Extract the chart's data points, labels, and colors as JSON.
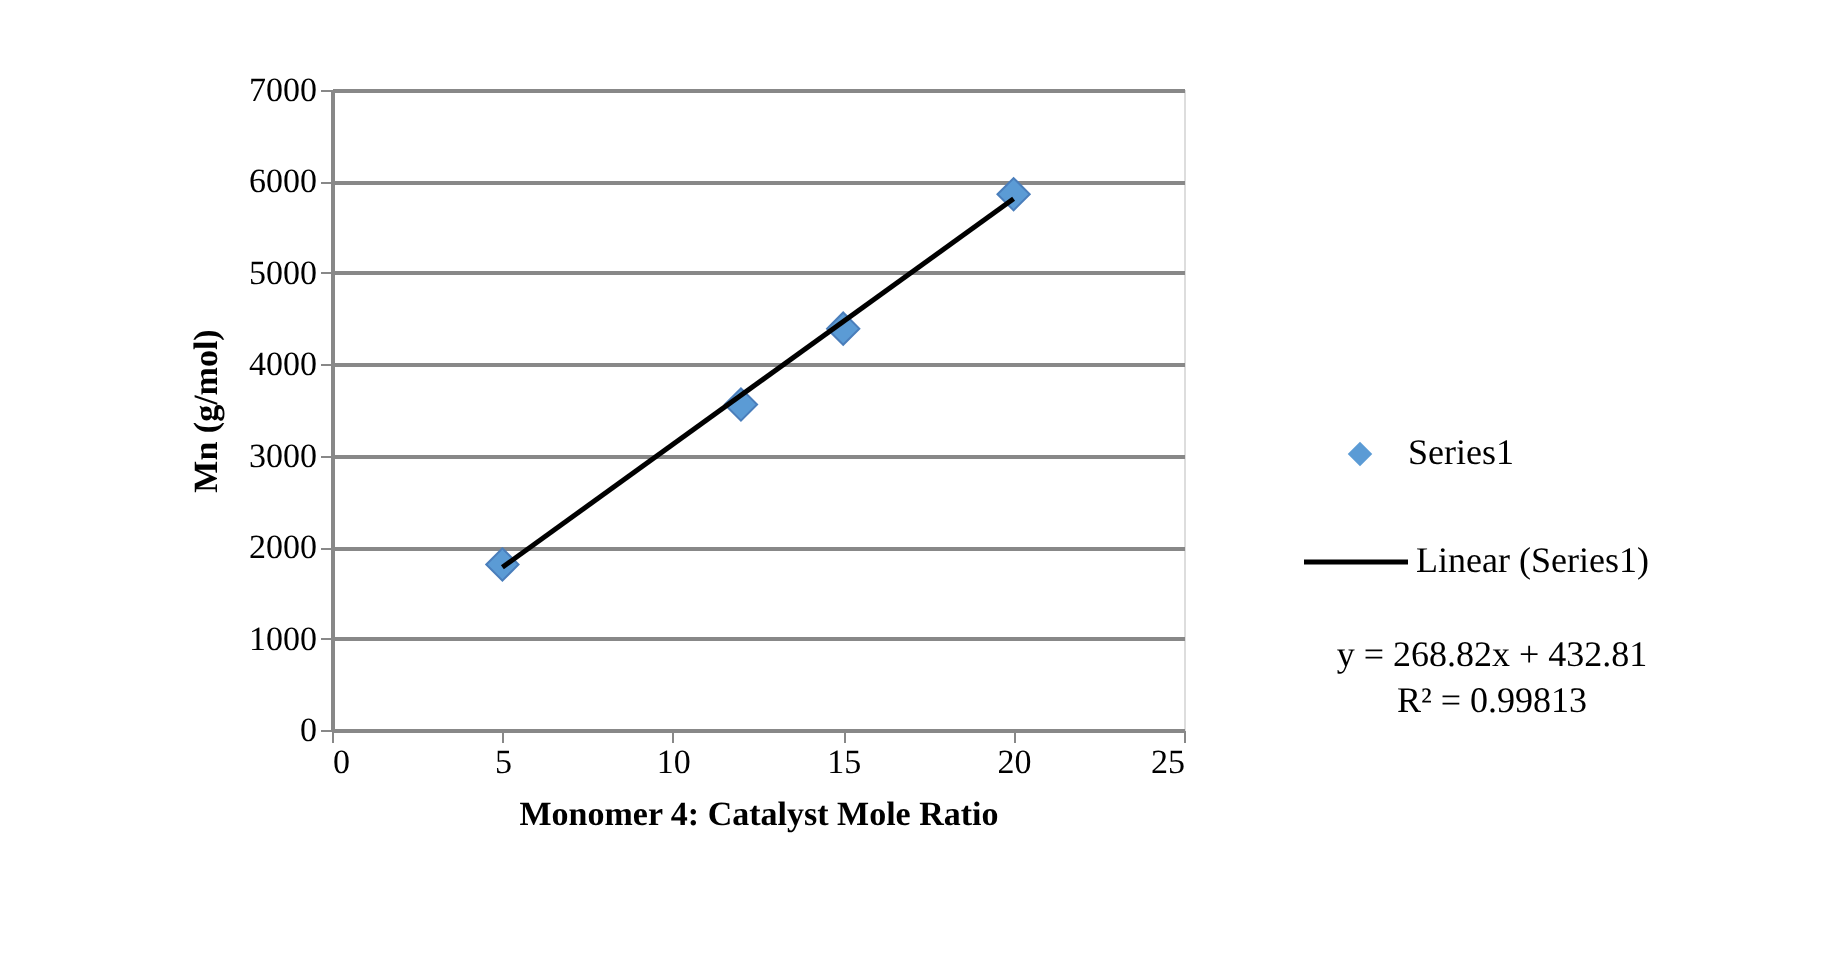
{
  "chart_data": {
    "type": "scatter",
    "xlabel": "Monomer 4: Catalyst Mole Ratio",
    "ylabel": "Mn (g/mol)",
    "series": [
      {
        "name": "Series1",
        "color": "#5b9bd5",
        "marker": "diamond",
        "x": [
          5,
          12,
          15,
          20
        ],
        "values": [
          1810,
          3560,
          4390,
          5860
        ]
      },
      {
        "name": "Linear (Series1)",
        "type": "line",
        "color": "#000000",
        "x": [
          5,
          20
        ],
        "values": [
          1780,
          5810
        ]
      }
    ],
    "xlim": [
      0,
      25
    ],
    "xticks": [
      0,
      5,
      10,
      15,
      20,
      25
    ],
    "ylim": [
      0,
      7000
    ],
    "yticks": [
      0,
      1000,
      2000,
      3000,
      4000,
      5000,
      6000,
      7000
    ],
    "grid": "y",
    "legend": "right",
    "line_style": "solid",
    "annotations": [
      "y = 268.82x + 432.81",
      "R² = 0.99813"
    ]
  }
}
